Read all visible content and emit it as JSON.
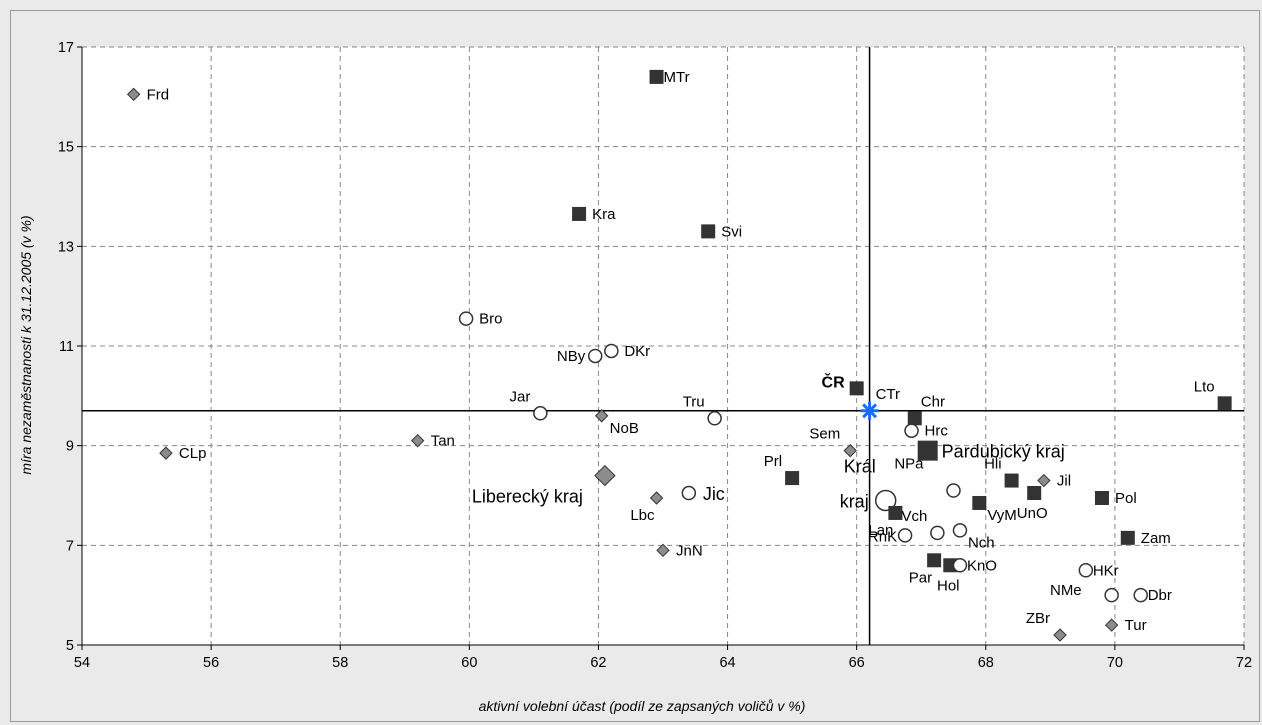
{
  "chart_data": {
    "type": "scatter",
    "title": "",
    "xlabel": "aktivní volební účast (podíl ze zapsaných voličů v %)",
    "ylabel": "míra nezaměstnanosti k 31.12.2005 (v %)",
    "xlim": [
      54,
      72
    ],
    "ylim": [
      5,
      17
    ],
    "xticks": [
      54,
      56,
      58,
      60,
      62,
      64,
      66,
      68,
      70,
      72
    ],
    "yticks": [
      5,
      7,
      9,
      11,
      13,
      15,
      17
    ],
    "grid": true,
    "reference_lines": {
      "x": 66.2,
      "y": 9.7
    },
    "colors": {
      "square": "#333333",
      "diamond": "#8c8c8c",
      "circle_fill": "#ffffff",
      "star": "#1a6bff"
    },
    "points": [
      {
        "label": "Frd",
        "x": 54.8,
        "y": 16.05,
        "marker": "diamond",
        "label_pos": "right"
      },
      {
        "label": "MTr",
        "x": 62.9,
        "y": 16.4,
        "marker": "square",
        "label_pos": "right-tight"
      },
      {
        "label": "Kra",
        "x": 61.7,
        "y": 13.65,
        "marker": "square",
        "label_pos": "right"
      },
      {
        "label": "Svi",
        "x": 63.7,
        "y": 13.3,
        "marker": "square",
        "label_pos": "right"
      },
      {
        "label": "Bro",
        "x": 59.95,
        "y": 11.55,
        "marker": "circle",
        "label_pos": "right"
      },
      {
        "label": "NBy",
        "x": 61.95,
        "y": 10.8,
        "marker": "circle",
        "label_pos": "left"
      },
      {
        "label": "DKr",
        "x": 62.2,
        "y": 10.9,
        "marker": "circle",
        "label_pos": "right"
      },
      {
        "label": "ČR",
        "x": 66.0,
        "y": 10.15,
        "marker": "square",
        "label_pos": "left-bold"
      },
      {
        "label": "CTr",
        "x": 66.2,
        "y": 9.7,
        "marker": "star",
        "label_pos": "above-right"
      },
      {
        "label": "Lto",
        "x": 71.7,
        "y": 9.85,
        "marker": "square",
        "label_pos": "above-left"
      },
      {
        "label": "Jar",
        "x": 61.1,
        "y": 9.65,
        "marker": "circle",
        "label_pos": "above-left"
      },
      {
        "label": "NoB",
        "x": 62.05,
        "y": 9.6,
        "marker": "diamond",
        "label_pos": "below-right"
      },
      {
        "label": "Tru",
        "x": 63.8,
        "y": 9.55,
        "marker": "circle",
        "label_pos": "above-left"
      },
      {
        "label": "Chr",
        "x": 66.9,
        "y": 9.55,
        "marker": "square",
        "label_pos": "above-right"
      },
      {
        "label": "Hrc",
        "x": 66.85,
        "y": 9.3,
        "marker": "circle",
        "label_pos": "right"
      },
      {
        "label": "Tan",
        "x": 59.2,
        "y": 9.1,
        "marker": "diamond",
        "label_pos": "right"
      },
      {
        "label": "CLp",
        "x": 55.3,
        "y": 8.85,
        "marker": "diamond",
        "label_pos": "right"
      },
      {
        "label": "Sem",
        "x": 65.9,
        "y": 8.9,
        "marker": "diamond",
        "label_pos": "above-left"
      },
      {
        "label": "Pardubický kraj",
        "x": 67.1,
        "y": 8.9,
        "marker": "square-big",
        "label_pos": "right-big"
      },
      {
        "label": "Prl",
        "x": 65.0,
        "y": 8.35,
        "marker": "square",
        "label_pos": "above-left"
      },
      {
        "label": "Liberecký kraj",
        "x": 62.1,
        "y": 8.4,
        "marker": "diamond-big",
        "label_pos": "below-left-big"
      },
      {
        "label": "Lbc",
        "x": 62.9,
        "y": 7.95,
        "marker": "diamond",
        "label_pos": "below-left"
      },
      {
        "label": "Jic",
        "x": 63.4,
        "y": 8.05,
        "marker": "circle",
        "label_pos": "right-big"
      },
      {
        "label": "Král",
        "x": 66.45,
        "y": 7.9,
        "marker": "circle-big",
        "label_pos": "above-left-big"
      },
      {
        "label": "kraj",
        "x": 66.45,
        "y": 7.9,
        "marker": "none",
        "label_pos": "left-big"
      },
      {
        "label": "NPa",
        "x": 67.5,
        "y": 8.1,
        "marker": "circle",
        "label_pos": "above-left-far"
      },
      {
        "label": "Hli",
        "x": 68.4,
        "y": 8.3,
        "marker": "square",
        "label_pos": "above-left"
      },
      {
        "label": "Jil",
        "x": 68.9,
        "y": 8.3,
        "marker": "diamond",
        "label_pos": "right"
      },
      {
        "label": "Pol",
        "x": 69.8,
        "y": 7.95,
        "marker": "square",
        "label_pos": "right"
      },
      {
        "label": "UnO",
        "x": 68.75,
        "y": 8.05,
        "marker": "square",
        "label_pos": "below-center"
      },
      {
        "label": "VyM",
        "x": 67.9,
        "y": 7.85,
        "marker": "square",
        "label_pos": "below-right"
      },
      {
        "label": "Lan",
        "x": 66.6,
        "y": 7.65,
        "marker": "square",
        "label_pos": "below-left"
      },
      {
        "label": "Vch",
        "x": 67.25,
        "y": 7.25,
        "marker": "circle",
        "label_pos": "above-left"
      },
      {
        "label": "RnK",
        "x": 66.75,
        "y": 7.2,
        "marker": "circle",
        "label_pos": "left-tight"
      },
      {
        "label": "Nch",
        "x": 67.6,
        "y": 7.3,
        "marker": "circle",
        "label_pos": "below-right"
      },
      {
        "label": "Zam",
        "x": 70.2,
        "y": 7.15,
        "marker": "square",
        "label_pos": "right"
      },
      {
        "label": "Par",
        "x": 67.2,
        "y": 6.7,
        "marker": "square",
        "label_pos": "below-left"
      },
      {
        "label": "Hol",
        "x": 67.45,
        "y": 6.6,
        "marker": "square",
        "label_pos": "below-center"
      },
      {
        "label": "KnO",
        "x": 67.6,
        "y": 6.6,
        "marker": "circle",
        "label_pos": "right-tight"
      },
      {
        "label": "HKr",
        "x": 69.55,
        "y": 6.5,
        "marker": "circle",
        "label_pos": "right-tight"
      },
      {
        "label": "NMe",
        "x": 69.95,
        "y": 6.0,
        "marker": "circle",
        "label_pos": "left-below"
      },
      {
        "label": "Dbr",
        "x": 70.4,
        "y": 6.0,
        "marker": "circle",
        "label_pos": "right-tight"
      },
      {
        "label": "ZBr",
        "x": 69.15,
        "y": 5.2,
        "marker": "diamond",
        "label_pos": "above-left"
      },
      {
        "label": "Tur",
        "x": 69.95,
        "y": 5.4,
        "marker": "diamond",
        "label_pos": "right"
      },
      {
        "label": "JnN",
        "x": 63.0,
        "y": 6.9,
        "marker": "diamond",
        "label_pos": "right"
      }
    ]
  }
}
